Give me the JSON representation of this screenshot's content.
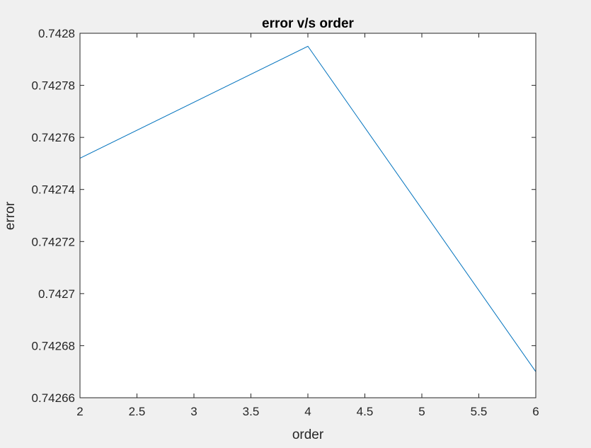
{
  "figure": {
    "background": "#f0f0f0",
    "axes_background": "#ffffff",
    "axis_color": "#262626"
  },
  "chart_data": {
    "type": "line",
    "title": "error v/s order",
    "xlabel": "order",
    "ylabel": "error",
    "xlim": [
      2,
      6
    ],
    "ylim": [
      0.74266,
      0.7428
    ],
    "xticks": [
      2,
      2.5,
      3,
      3.5,
      4,
      4.5,
      5,
      5.5,
      6
    ],
    "xtick_labels": [
      "2",
      "2.5",
      "3",
      "3.5",
      "4",
      "4.5",
      "5",
      "5.5",
      "6"
    ],
    "yticks": [
      0.74266,
      0.74268,
      0.7427,
      0.74272,
      0.74274,
      0.74276,
      0.74278,
      0.7428
    ],
    "ytick_labels": [
      "0.74266",
      "0.74268",
      "0.7427",
      "0.74272",
      "0.74274",
      "0.74276",
      "0.74278",
      "0.7428"
    ],
    "grid": false,
    "series": [
      {
        "color": "#0072bd",
        "x": [
          2,
          4,
          6
        ],
        "y": [
          0.742752,
          0.742795,
          0.74267
        ]
      }
    ]
  }
}
